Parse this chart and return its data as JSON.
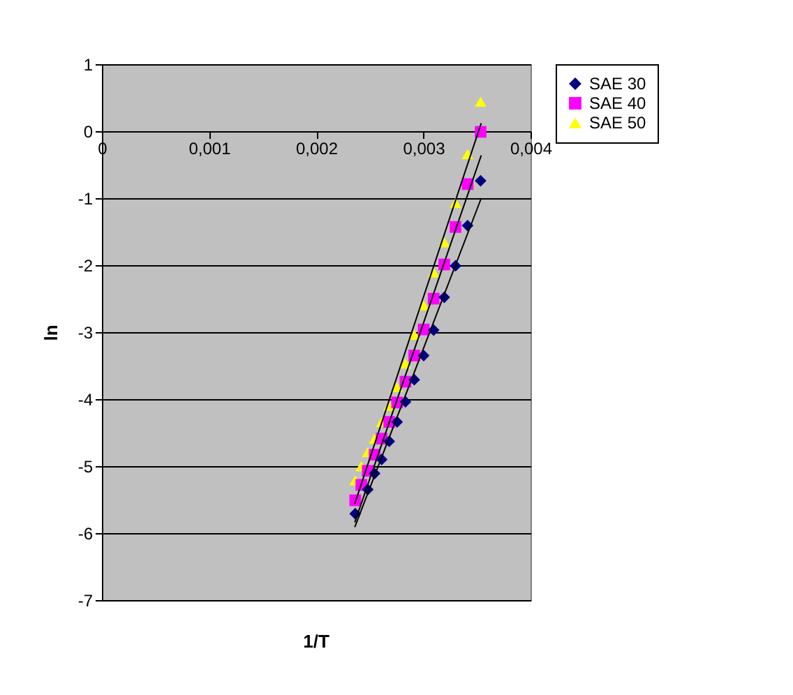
{
  "chart_data": {
    "type": "scatter",
    "xlabel": "1/T",
    "ylabel": "ln",
    "xlim": [
      0,
      0.004
    ],
    "ylim": [
      -7,
      1
    ],
    "xticks": [
      0,
      {
        "value": 0.001,
        "label": "0,001"
      },
      {
        "value": 0.002,
        "label": "0,002"
      },
      {
        "value": 0.003,
        "label": "0,003"
      },
      {
        "value": 0.004,
        "label": "0,004"
      }
    ],
    "yticks": [
      -7,
      -6,
      -5,
      -4,
      -3,
      -2,
      -1,
      0,
      1
    ],
    "grid": "y",
    "legend": "right",
    "series": [
      {
        "name": "SAE 30",
        "color": "#000080",
        "marker": "diamond",
        "x": [
          0.002364,
          0.002481,
          0.002545,
          0.002611,
          0.002681,
          0.002755,
          0.002833,
          0.002915,
          0.003003,
          0.003096,
          0.003195,
          0.0033,
          0.003413,
          0.003534
        ],
        "values": [
          -5.71,
          -5.35,
          -5.11,
          -4.9,
          -4.63,
          -4.34,
          -4.04,
          -3.71,
          -3.35,
          -2.97,
          -2.48,
          -2.01,
          -1.41,
          -0.74
        ]
      },
      {
        "name": "SAE 40",
        "color": "#ff00ff",
        "marker": "square",
        "x": [
          0.002364,
          0.002421,
          0.002481,
          0.002545,
          0.002611,
          0.002681,
          0.002755,
          0.002833,
          0.002915,
          0.003003,
          0.003096,
          0.003195,
          0.0033,
          0.003413,
          0.003534
        ],
        "values": [
          -5.51,
          -5.28,
          -5.07,
          -4.83,
          -4.59,
          -4.34,
          -4.05,
          -3.74,
          -3.35,
          -2.96,
          -2.5,
          -1.99,
          -1.43,
          -0.79,
          -0.01
        ]
      },
      {
        "name": "SAE 50",
        "color": "#ffff00",
        "marker": "triangle",
        "x": [
          0.002364,
          0.002421,
          0.002481,
          0.002545,
          0.002611,
          0.002681,
          0.002755,
          0.002833,
          0.002915,
          0.003003,
          0.003096,
          0.003195,
          0.0033,
          0.003413,
          0.003534
        ],
        "values": [
          -5.21,
          -5.0,
          -4.79,
          -4.59,
          -4.34,
          -4.1,
          -3.82,
          -3.47,
          -3.04,
          -2.6,
          -2.11,
          -1.66,
          -1.07,
          -0.34,
          0.44
        ]
      },
      {
        "type": "line",
        "color": "#000000",
        "marker": "none",
        "x": [
          0.00236,
          0.00354
        ],
        "values": [
          -5.91,
          -1.0
        ]
      },
      {
        "type": "line",
        "color": "#000000",
        "marker": "none",
        "x": [
          0.00236,
          0.00354
        ],
        "values": [
          -5.84,
          -0.36
        ]
      },
      {
        "type": "line",
        "color": "#000000",
        "marker": "none",
        "x": [
          0.00236,
          0.00354
        ],
        "values": [
          -5.56,
          0.12
        ]
      }
    ]
  }
}
